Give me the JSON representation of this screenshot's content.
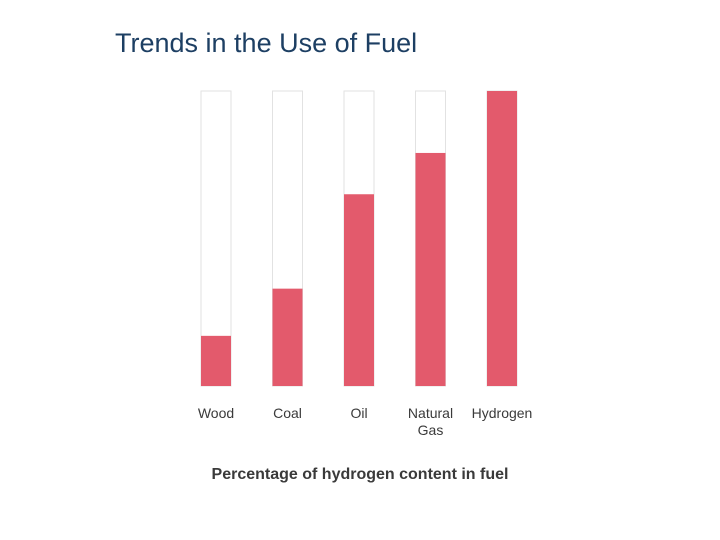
{
  "slide": {
    "title": "Trends in the Use of Fuel"
  },
  "colors": {
    "bar_fill": "#e35a6c",
    "bar_track": "#ffffff",
    "bar_track_border": "#e2e2e2",
    "title": "#1d3f63",
    "label": "#3a3a3a"
  },
  "chart_data": {
    "type": "bar",
    "title": "",
    "xlabel": "Percentage of hydrogen content in fuel",
    "ylabel": "",
    "categories": [
      [
        "Wood"
      ],
      [
        "Coal"
      ],
      [
        "Oil"
      ],
      [
        "Natural",
        "Gas"
      ],
      [
        "Hydrogen"
      ]
    ],
    "values": [
      17,
      33,
      65,
      79,
      100
    ],
    "ylim": [
      0,
      100
    ],
    "grid": false,
    "legend": "none"
  }
}
